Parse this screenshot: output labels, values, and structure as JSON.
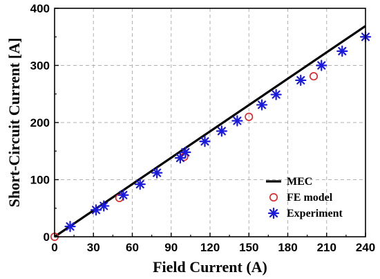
{
  "chart_data": {
    "type": "scatter",
    "xlabel": "Field Current (A)",
    "ylabel": "Short-Circuit Current [A]",
    "xlim": [
      0,
      240
    ],
    "ylim": [
      0,
      400
    ],
    "xticks": [
      "0",
      "30",
      "60",
      "90",
      "120",
      "150",
      "180",
      "210",
      "240"
    ],
    "yticks": [
      "0",
      "100",
      "200",
      "300",
      "400"
    ],
    "grid": true,
    "legend_position": "bottom-right",
    "series": [
      {
        "name": "MEC",
        "kind": "line",
        "color": "#000000",
        "x": [
          0,
          240
        ],
        "y": [
          0,
          369
        ]
      },
      {
        "name": "FE model",
        "kind": "circle",
        "color": "#e02020",
        "x": [
          0,
          50,
          100,
          150,
          200
        ],
        "y": [
          0,
          68,
          140,
          210,
          281
        ]
      },
      {
        "name": "Experiment",
        "kind": "asterisk",
        "color": "#1a1adc",
        "x": [
          12,
          32,
          38,
          53,
          66,
          79,
          97,
          101,
          116,
          129,
          141,
          160,
          171,
          190,
          206,
          222,
          240
        ],
        "y": [
          18,
          47,
          54,
          73,
          92,
          112,
          138,
          148,
          167,
          185,
          203,
          231,
          249,
          274,
          300,
          325,
          350
        ]
      }
    ]
  }
}
